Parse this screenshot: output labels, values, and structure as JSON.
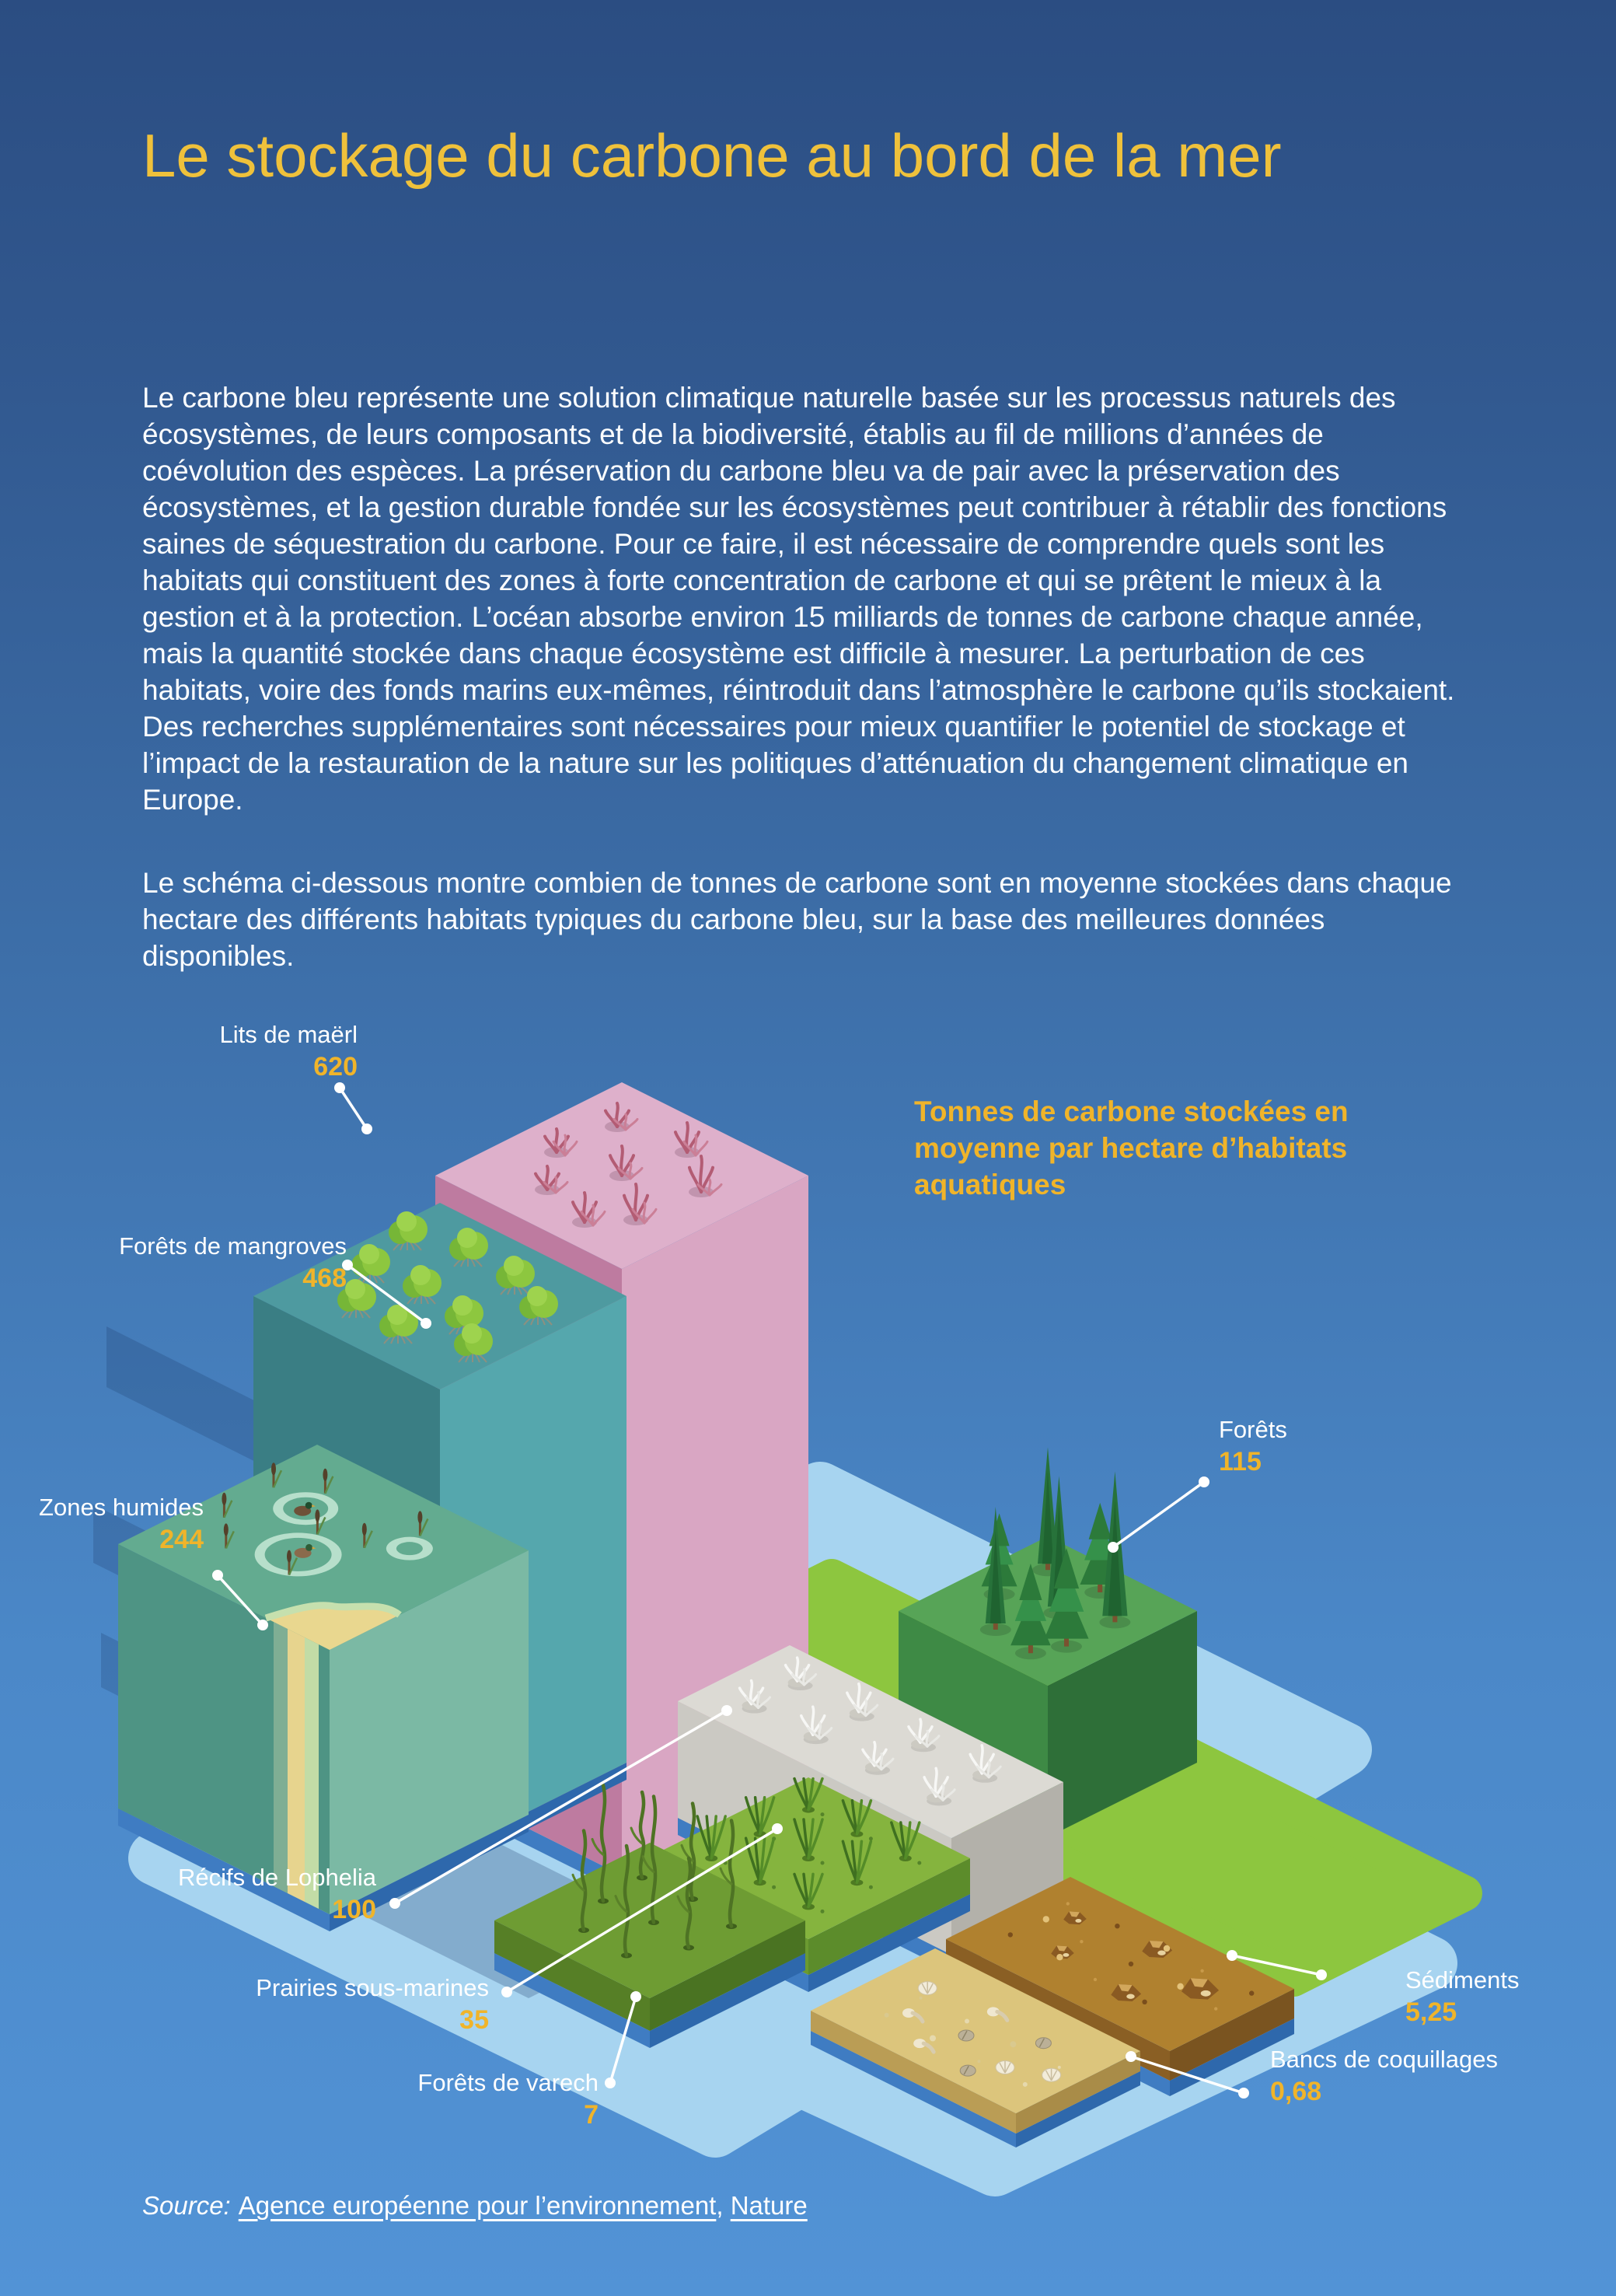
{
  "page": {
    "title": "Le stockage du carbone au bord de la mer",
    "paragraphs": [
      "Le carbone bleu représente une solution climatique naturelle basée sur les processus naturels des écosystèmes, de leurs composants et de la biodiversité, établis au fil de millions d’années de coévolution des espèces. La préservation du carbone bleu va de pair avec la préservation des écosystèmes, et la gestion durable fondée sur les écosystèmes peut contribuer à rétablir des fonctions saines de séquestration du carbone. Pour ce faire, il est nécessaire de comprendre quels sont les habitats qui constituent des zones à forte concentration de carbone et qui se prêtent le mieux à la gestion et à la protection. L’océan absorbe environ 15 milliards de tonnes de carbone chaque année, mais la quantité stockée dans chaque écosystème est difficile à mesurer. La perturbation de ces habitats, voire des fonds marins eux-mêmes, réintroduit dans l’atmosphère le carbone qu’ils stockaient. Des recherches supplémentaires sont nécessaires pour mieux quantifier le potentiel de stockage et l’impact de la restauration de la nature sur les politiques d’atténuation du changement climatique en Europe.",
      "Le schéma ci-dessous montre combien de tonnes de carbone sont en moyenne stockées dans chaque hectare des différents habitats typiques du carbone bleu, sur la base des meilleures données disponibles."
    ],
    "source": {
      "label": "Source:",
      "links": [
        {
          "text": "Agence européenne pour l’environnement"
        },
        {
          "text": "Nature"
        }
      ],
      "separator": ", "
    }
  },
  "chart_data": {
    "type": "bar",
    "style": "isometric-3d-infographic",
    "title": "Tonnes de carbone stockées en moyenne par hectare d’habitats aquatiques",
    "categories": [
      "Lits de maërl",
      "Forêts de mangroves",
      "Zones humides",
      "Forêts",
      "Récifs de Lophelia",
      "Prairies sous-marines",
      "Forêts de varech",
      "Sédiments",
      "Bancs de coquillages"
    ],
    "values": [
      620,
      468,
      244,
      115,
      100,
      35,
      7,
      5.25,
      0.68
    ],
    "display_values": [
      "620",
      "468",
      "244",
      "115",
      "100",
      "35",
      "7",
      "5,25",
      "0,68"
    ],
    "unit": "tonnes de carbone par hectare",
    "legend_position": "top-right"
  },
  "colors": {
    "accent_yellow": "#F0B42A",
    "title_yellow": "#EFC13B",
    "text_white": "#FFFFFF",
    "background_top": "#2B4D82",
    "background_bottom": "#5293D6",
    "water": "#A7D4F0",
    "land_strip": "#8DC63F"
  }
}
